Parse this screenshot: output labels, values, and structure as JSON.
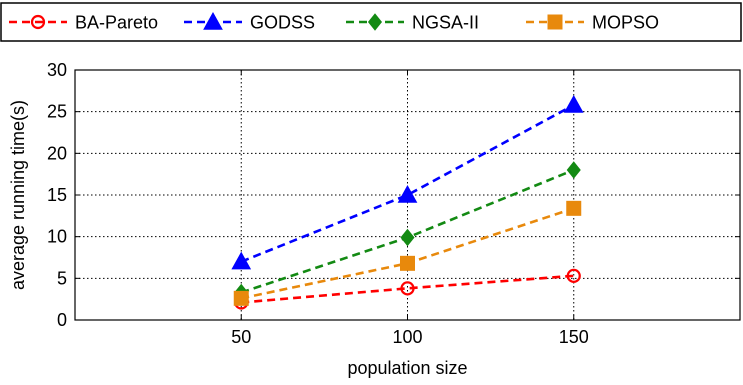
{
  "chart_data": {
    "type": "line",
    "title": "",
    "xlabel": "population size",
    "ylabel": "average running time(s)",
    "x": [
      50,
      100,
      150
    ],
    "xlim": [
      0,
      200
    ],
    "ylim": [
      0,
      30
    ],
    "xticks": [
      50,
      100,
      150
    ],
    "yticks": [
      0,
      5,
      10,
      15,
      20,
      25,
      30
    ],
    "grid": true,
    "legend_position": "top",
    "series": [
      {
        "name": "BA-Pareto",
        "values": [
          2.1,
          3.8,
          5.3
        ],
        "color": "#ff0000",
        "marker": "open-circle",
        "line": "dashed"
      },
      {
        "name": "GODSS",
        "values": [
          7.0,
          15.0,
          25.8
        ],
        "color": "#0000ff",
        "marker": "triangle",
        "line": "dashed"
      },
      {
        "name": "NGSA-II",
        "values": [
          3.3,
          9.9,
          18.0
        ],
        "color": "#138a13",
        "marker": "diamond",
        "line": "dashed"
      },
      {
        "name": "MOPSO",
        "values": [
          2.6,
          6.8,
          13.4
        ],
        "color": "#e8890c",
        "marker": "square",
        "line": "dashed"
      }
    ]
  }
}
